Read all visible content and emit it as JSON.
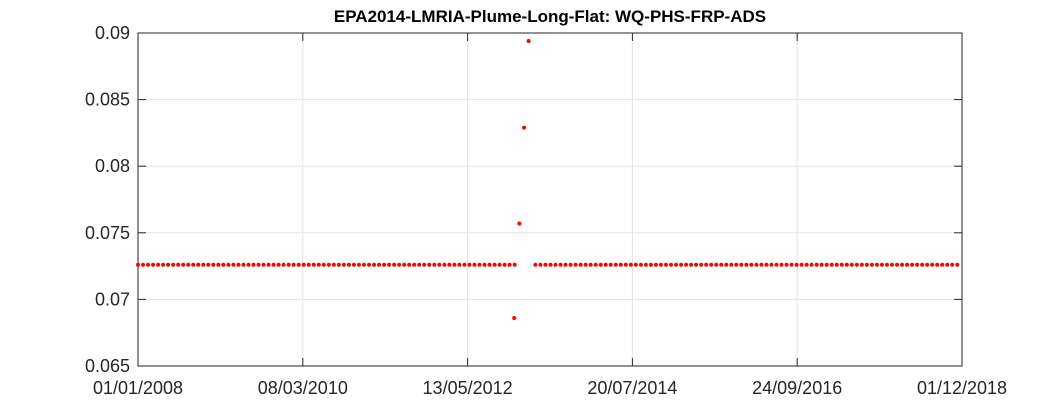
{
  "chart_data": {
    "type": "scatter",
    "title": "EPA2014-LMRIA-Plume-Long-Flat: WQ-PHS-FRP-ADS",
    "xlabel": "",
    "ylabel": "",
    "x_tick_labels": [
      "01/01/2008",
      "08/03/2010",
      "13/05/2012",
      "20/07/2014",
      "24/09/2016",
      "01/12/2018"
    ],
    "y_tick_labels": [
      "0.065",
      "0.07",
      "0.075",
      "0.08",
      "0.085",
      "0.09"
    ],
    "ylim": [
      0.065,
      0.09
    ],
    "xlim_days_from_2008_01_01": [
      0,
      3987
    ],
    "grid": true,
    "marker_color": "#ff0000",
    "series": [
      {
        "name": "WQ-PHS-FRP-ADS",
        "baseline_value": 0.0726,
        "baseline_ranges_days": [
          [
            0,
            1846
          ],
          [
            1923,
            3987
          ]
        ],
        "baseline_step_days": 24.3,
        "points": [
          {
            "x_days": 1820,
            "y": 0.0686
          },
          {
            "x_days": 1845,
            "y": 0.0757
          },
          {
            "x_days": 1868,
            "y": 0.0829
          },
          {
            "x_days": 1890,
            "y": 0.0894
          }
        ]
      }
    ]
  }
}
